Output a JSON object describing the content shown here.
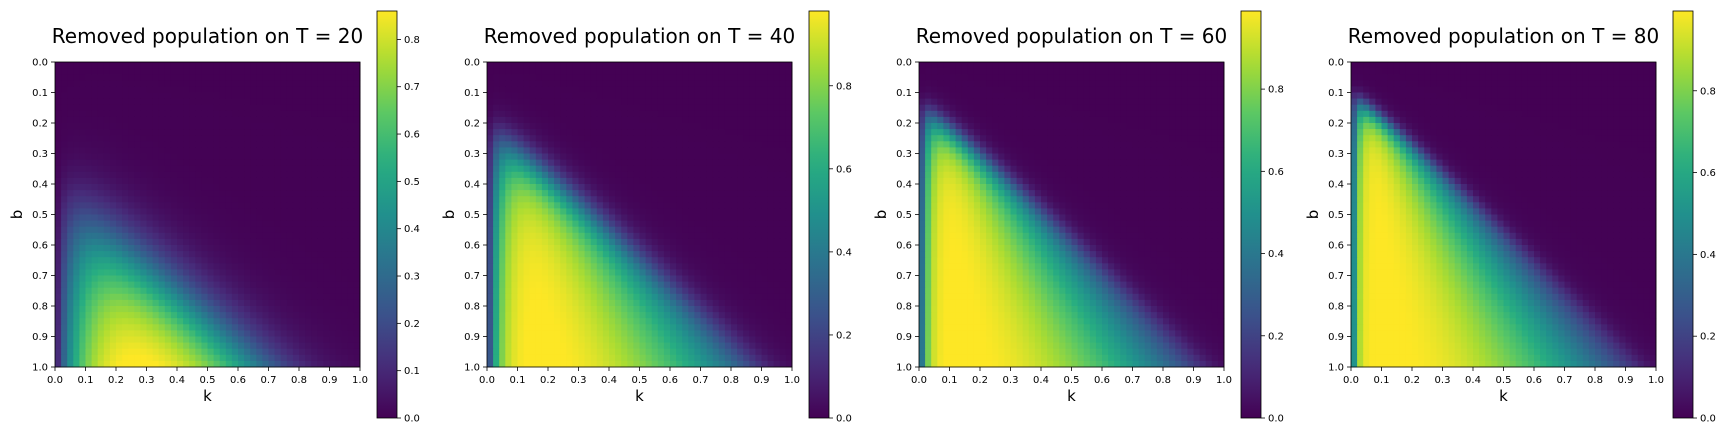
{
  "chart_data": [
    {
      "type": "heatmap",
      "title": "Removed population on T = 20",
      "xlabel": "k",
      "ylabel": "b",
      "T": 20,
      "grid": false,
      "x_range": [
        0,
        1
      ],
      "y_range": [
        0,
        1
      ],
      "x_ticks": [
        "0.0",
        "0.1",
        "0.2",
        "0.3",
        "0.4",
        "0.5",
        "0.6",
        "0.7",
        "0.8",
        "0.9",
        "1.0"
      ],
      "y_ticks": [
        "0.0",
        "0.1",
        "0.2",
        "0.3",
        "0.4",
        "0.5",
        "0.6",
        "0.7",
        "0.8",
        "0.9",
        "1.0"
      ],
      "colormap": "viridis",
      "colorbar": {
        "min": 0.0,
        "max": 0.86,
        "ticks": [
          "0.0",
          "0.1",
          "0.2",
          "0.3",
          "0.4",
          "0.5",
          "0.6",
          "0.7",
          "0.8"
        ],
        "tick_values": [
          0,
          0.1,
          0.2,
          0.3,
          0.4,
          0.5,
          0.6,
          0.7,
          0.8
        ]
      }
    },
    {
      "type": "heatmap",
      "title": "Removed population on T = 40",
      "xlabel": "k",
      "ylabel": "b",
      "T": 40,
      "grid": false,
      "x_range": [
        0,
        1
      ],
      "y_range": [
        0,
        1
      ],
      "x_ticks": [
        "0.0",
        "0.1",
        "0.2",
        "0.3",
        "0.4",
        "0.5",
        "0.6",
        "0.7",
        "0.8",
        "0.9",
        "1.0"
      ],
      "y_ticks": [
        "0.0",
        "0.1",
        "0.2",
        "0.3",
        "0.4",
        "0.5",
        "0.6",
        "0.7",
        "0.8",
        "0.9",
        "1.0"
      ],
      "colormap": "viridis",
      "colorbar": {
        "min": 0.0,
        "max": 0.98,
        "ticks": [
          "0.0",
          "0.2",
          "0.4",
          "0.6",
          "0.8"
        ],
        "tick_values": [
          0,
          0.2,
          0.4,
          0.6,
          0.8
        ]
      }
    },
    {
      "type": "heatmap",
      "title": "Removed population on T = 60",
      "xlabel": "k",
      "ylabel": "b",
      "T": 60,
      "grid": false,
      "x_range": [
        0,
        1
      ],
      "y_range": [
        0,
        1
      ],
      "x_ticks": [
        "0.0",
        "0.1",
        "0.2",
        "0.3",
        "0.4",
        "0.5",
        "0.6",
        "0.7",
        "0.8",
        "0.9",
        "1.0"
      ],
      "y_ticks": [
        "0.0",
        "0.1",
        "0.2",
        "0.3",
        "0.4",
        "0.5",
        "0.6",
        "0.7",
        "0.8",
        "0.9",
        "1.0"
      ],
      "colormap": "viridis",
      "colorbar": {
        "min": 0.0,
        "max": 0.99,
        "ticks": [
          "0.0",
          "0.2",
          "0.4",
          "0.6",
          "0.8"
        ],
        "tick_values": [
          0,
          0.2,
          0.4,
          0.6,
          0.8
        ]
      }
    },
    {
      "type": "heatmap",
      "title": "Removed population on T = 80",
      "xlabel": "k",
      "ylabel": "b",
      "T": 80,
      "grid": false,
      "x_range": [
        0,
        1
      ],
      "y_range": [
        0,
        1
      ],
      "x_ticks": [
        "0.0",
        "0.1",
        "0.2",
        "0.3",
        "0.4",
        "0.5",
        "0.6",
        "0.7",
        "0.8",
        "0.9",
        "1.0"
      ],
      "y_ticks": [
        "0.0",
        "0.1",
        "0.2",
        "0.3",
        "0.4",
        "0.5",
        "0.6",
        "0.7",
        "0.8",
        "0.9",
        "1.0"
      ],
      "colormap": "viridis",
      "colorbar": {
        "min": 0.0,
        "max": 0.995,
        "ticks": [
          "0.0",
          "0.2",
          "0.4",
          "0.6",
          "0.8"
        ],
        "tick_values": [
          0,
          0.2,
          0.4,
          0.6,
          0.8
        ]
      }
    }
  ]
}
